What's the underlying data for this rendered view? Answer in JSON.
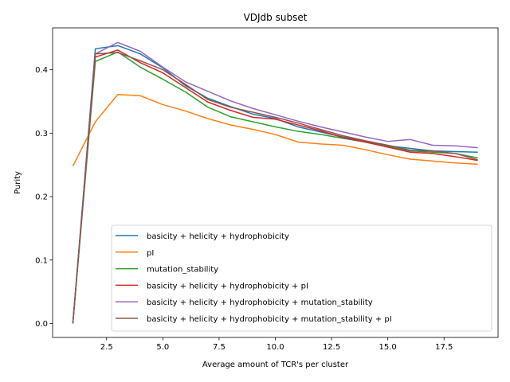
{
  "chart_data": {
    "type": "line",
    "title": "VDJdb subset",
    "xlabel": "Average amount of TCR's per cluster",
    "ylabel": "Purity",
    "xlim": [
      0.1,
      19.9
    ],
    "ylim": [
      -0.022,
      0.466
    ],
    "xticks": [
      2.5,
      5.0,
      7.5,
      10.0,
      12.5,
      15.0,
      17.5
    ],
    "xtick_labels": [
      "2.5",
      "5.0",
      "7.5",
      "10.0",
      "12.5",
      "15.0",
      "17.5"
    ],
    "yticks": [
      0.0,
      0.1,
      0.2,
      0.3,
      0.4
    ],
    "ytick_labels": [
      "0.0",
      "0.1",
      "0.2",
      "0.3",
      "0.4"
    ],
    "legend_position": "lower-right",
    "grid": false,
    "x": [
      1,
      2,
      3,
      4,
      5,
      6,
      7,
      8,
      9,
      10,
      11,
      12,
      13,
      14,
      15,
      16,
      17,
      18,
      19
    ],
    "series": [
      {
        "name": "basicity + helicity + hydrophobicity",
        "color": "#1f77b4",
        "values": [
          0.0,
          0.433,
          0.438,
          0.425,
          0.403,
          0.375,
          0.355,
          0.342,
          0.33,
          0.323,
          0.31,
          0.302,
          0.294,
          0.287,
          0.28,
          0.276,
          0.272,
          0.271,
          0.27
        ]
      },
      {
        "name": "pI",
        "color": "#ff7f0e",
        "values": [
          0.248,
          0.318,
          0.361,
          0.359,
          0.345,
          0.335,
          0.323,
          0.313,
          0.306,
          0.298,
          0.286,
          0.283,
          0.281,
          0.274,
          0.266,
          0.259,
          0.256,
          0.253,
          0.251
        ]
      },
      {
        "name": "mutation_stability",
        "color": "#2ca02c",
        "values": [
          0.0,
          0.413,
          0.428,
          0.404,
          0.385,
          0.365,
          0.341,
          0.326,
          0.318,
          0.31,
          0.303,
          0.298,
          0.292,
          0.286,
          0.279,
          0.272,
          0.27,
          0.268,
          0.261
        ]
      },
      {
        "name": "basicity + helicity + hydrophobicity + pI",
        "color": "#d62728",
        "values": [
          0.0,
          0.42,
          0.431,
          0.411,
          0.395,
          0.372,
          0.349,
          0.336,
          0.325,
          0.322,
          0.313,
          0.304,
          0.293,
          0.286,
          0.278,
          0.27,
          0.268,
          0.263,
          0.257
        ]
      },
      {
        "name": "basicity + helicity + hydrophobicity + mutation_stability",
        "color": "#9467bd",
        "values": [
          0.0,
          0.425,
          0.443,
          0.429,
          0.404,
          0.381,
          0.366,
          0.351,
          0.339,
          0.329,
          0.319,
          0.31,
          0.302,
          0.294,
          0.287,
          0.29,
          0.281,
          0.28,
          0.277
        ]
      },
      {
        "name": "basicity + helicity + hydrophobicity + mutation_stability + pI",
        "color": "#8c564b",
        "values": [
          0.0,
          0.425,
          0.427,
          0.414,
          0.4,
          0.377,
          0.353,
          0.341,
          0.333,
          0.325,
          0.316,
          0.306,
          0.296,
          0.288,
          0.281,
          0.273,
          0.272,
          0.268,
          0.258
        ]
      }
    ]
  }
}
